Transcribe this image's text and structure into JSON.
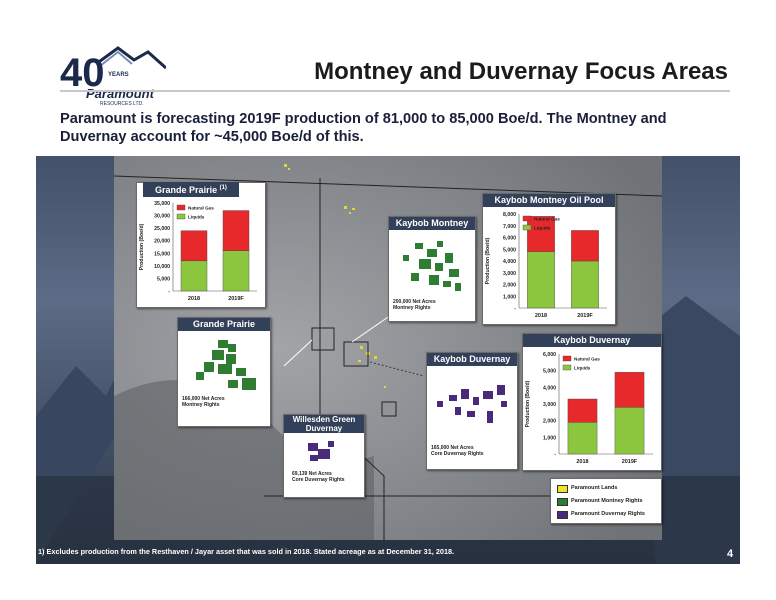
{
  "title": "Montney and Duvernay Focus Areas",
  "subtitle": "Paramount is forecasting 2019F production of 81,000 to 85,000 Boe/d.  The Montney and Duvernay account for ~45,000 Boe/d of this.",
  "logo": {
    "big": "40",
    "small": "YEARS",
    "name": "Paramount",
    "sub": "RESOURCES LTD."
  },
  "panels": {
    "grande_prairie_chart_title": "Grande Prairie",
    "grande_prairie_chart_note": "(1)",
    "kaybob_montney_oil_title": "Kaybob Montney Oil Pool",
    "kaybob_duvernay_chart_title": "Kaybob Duvernay",
    "kaybob_montney_map_title": "Kaybob Montney",
    "kaybob_montney_map_caption": "200,000 Net Acres\nMontney Rights",
    "grande_prairie_map_title": "Grande Prairie",
    "grande_prairie_map_caption": "166,000 Net Acres\nMontney Rights",
    "kaybob_duvernay_map_title": "Kaybob Duvernay",
    "kaybob_duvernay_map_caption": "165,000 Net Acres\nCore Duvernay Rights",
    "willesden_title": "Willesden Green\nDuvernay",
    "willesden_caption": "69,139 Net Acres\nCore Duvernay Rights"
  },
  "legend": {
    "items": [
      {
        "label": "Paramount Lands",
        "color": "#f0e22a"
      },
      {
        "label": "Paramount Montney Rights",
        "color": "#2e7d32"
      },
      {
        "label": "Paramount Duvernay Rights",
        "color": "#4a2a7a"
      }
    ]
  },
  "footnote": "1) Excludes production from the Resthaven / Jayar asset that was sold in 2018. Stated acreage as at December 31, 2018.",
  "page_number": "4",
  "colors": {
    "natural_gas": "#e8292b",
    "liquids": "#8cc63f",
    "panel_header": "#33405a"
  },
  "chart_data": [
    {
      "type": "bar",
      "title": "Grande Prairie",
      "categories": [
        "2018",
        "2019F"
      ],
      "ylabel": "Production (Boe/d)",
      "ylim": [
        0,
        35000
      ],
      "yticks": [
        "35,000",
        "30,000",
        "25,000",
        "20,000",
        "15,000",
        "10,000",
        "5,000",
        "-"
      ],
      "stacked": true,
      "series": [
        {
          "name": "Liquids",
          "values": [
            12000,
            16000
          ]
        },
        {
          "name": "Natural Gas",
          "values": [
            12000,
            16000
          ]
        }
      ]
    },
    {
      "type": "bar",
      "title": "Kaybob Montney Oil Pool",
      "categories": [
        "2018",
        "2019F"
      ],
      "ylabel": "Production (Boe/d)",
      "ylim": [
        0,
        8000
      ],
      "yticks": [
        "8,000",
        "7,000",
        "6,000",
        "5,000",
        "4,000",
        "3,000",
        "2,000",
        "1,000",
        "-"
      ],
      "stacked": true,
      "series": [
        {
          "name": "Liquids",
          "values": [
            4800,
            4000
          ]
        },
        {
          "name": "Natural Gas",
          "values": [
            3000,
            2600
          ]
        }
      ]
    },
    {
      "type": "bar",
      "title": "Kaybob Duvernay",
      "categories": [
        "2018",
        "2019F"
      ],
      "ylabel": "Production (Boe/d)",
      "ylim": [
        0,
        6000
      ],
      "yticks": [
        "6,000",
        "5,000",
        "4,000",
        "3,000",
        "2,000",
        "1,000",
        "-"
      ],
      "stacked": true,
      "series": [
        {
          "name": "Liquids",
          "values": [
            1900,
            2800
          ]
        },
        {
          "name": "Natural Gas",
          "values": [
            1400,
            2100
          ]
        }
      ]
    }
  ]
}
